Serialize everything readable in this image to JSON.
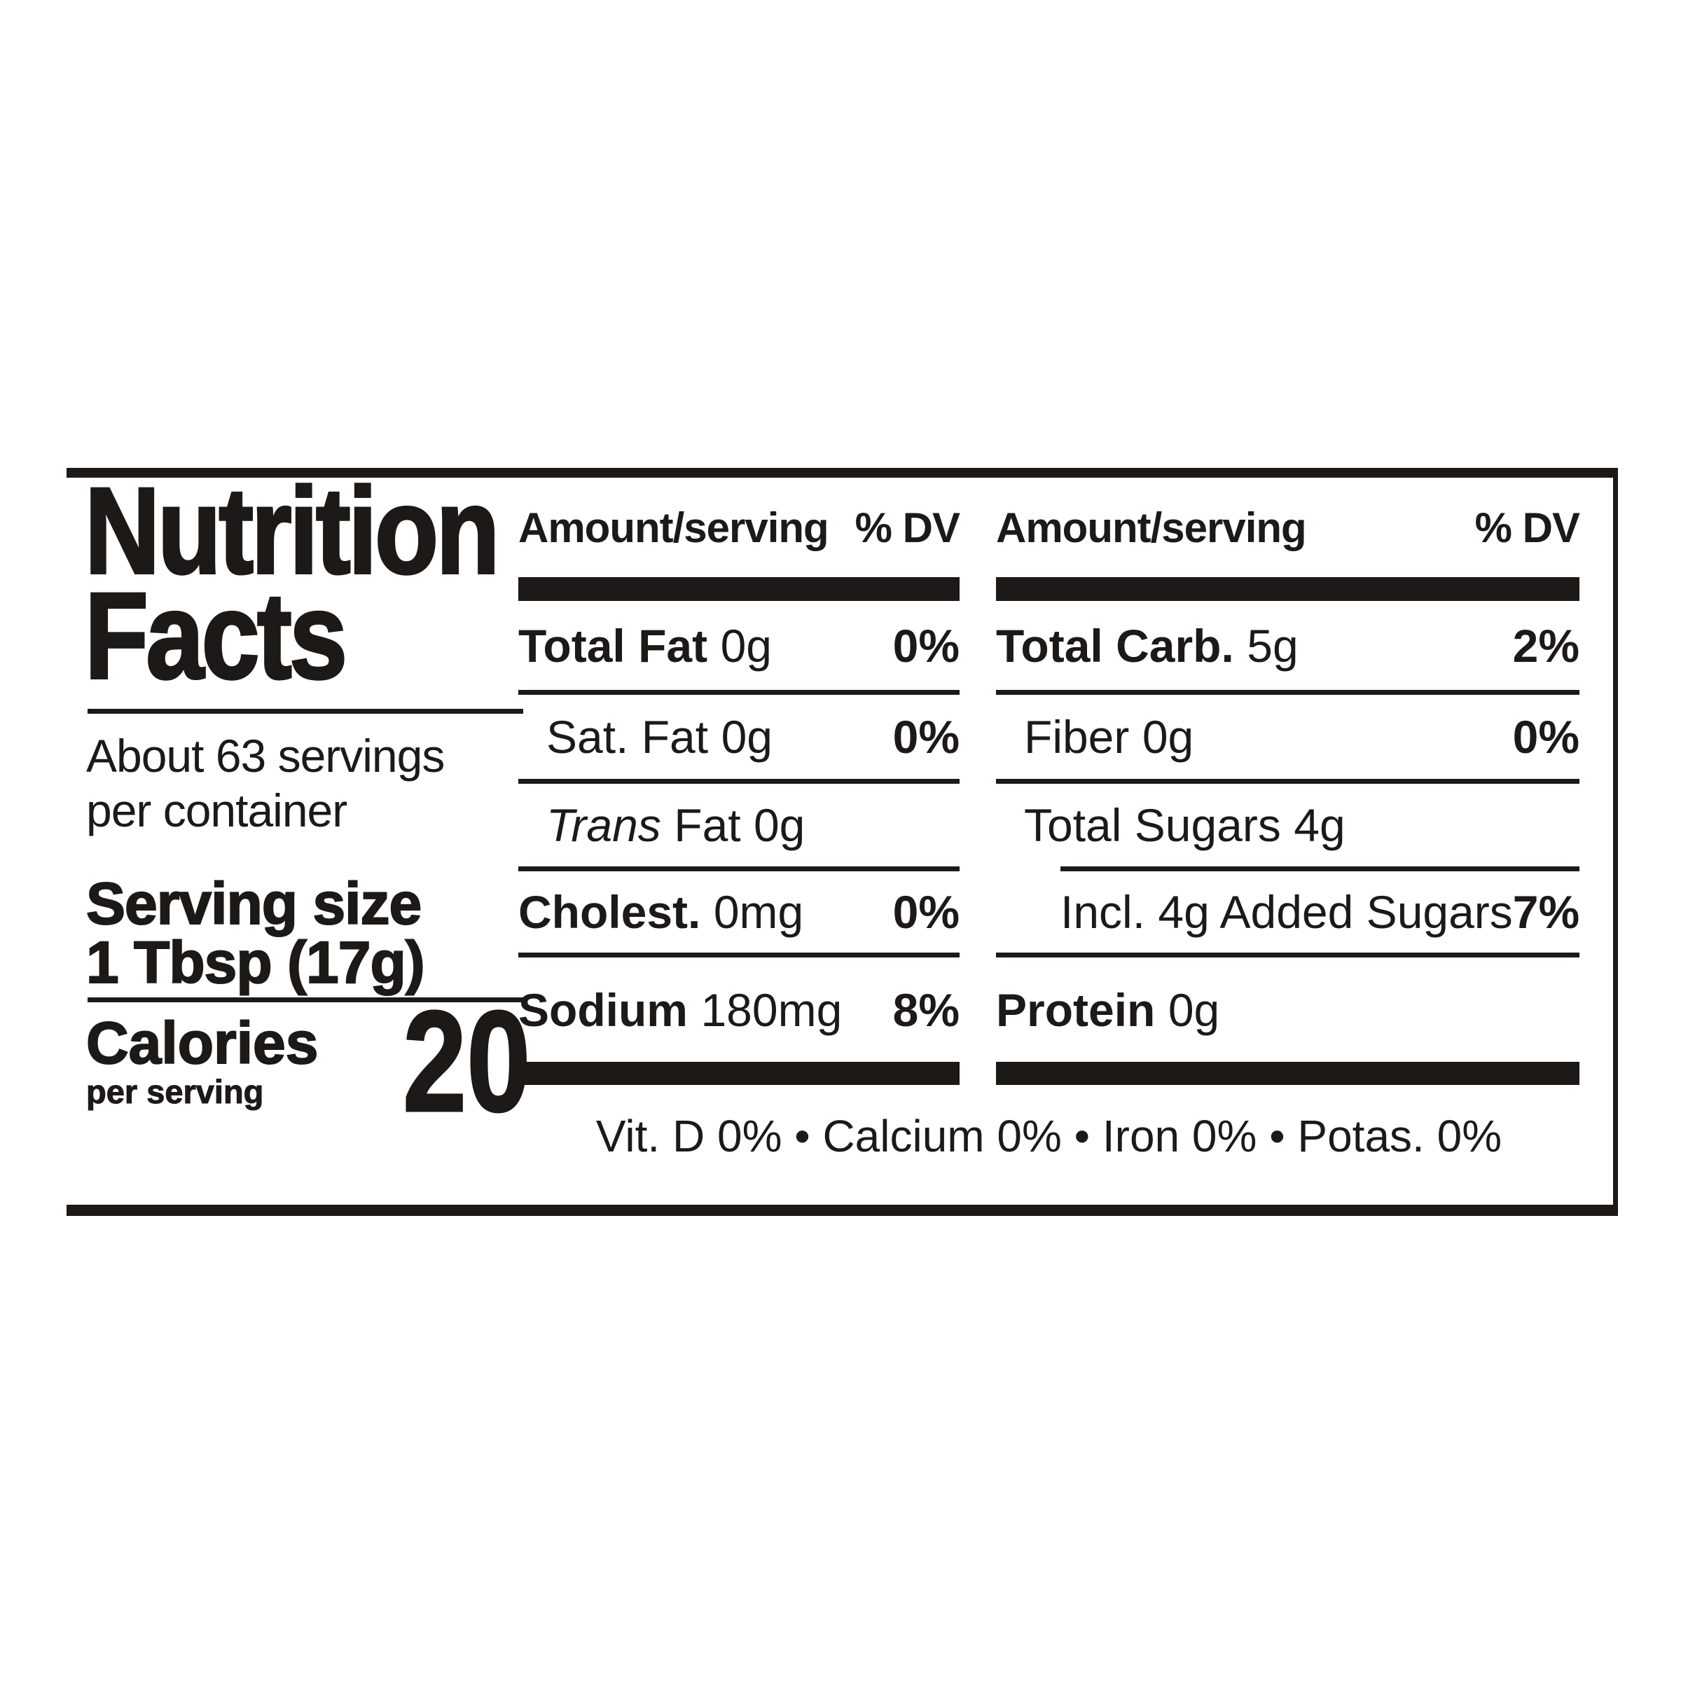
{
  "page": {
    "background": "#ffffff",
    "ink_color": "#1c1917"
  },
  "label": {
    "title": {
      "line1": "Nutrition",
      "line2": "Facts"
    },
    "servings_per_container": {
      "line1": "About 63 servings",
      "line2": "per container"
    },
    "serving_size": {
      "label": "Serving size",
      "value": "1 Tbsp (17g)"
    },
    "calories": {
      "label": "Calories",
      "sublabel": "per serving",
      "value": "20"
    },
    "columns": [
      {
        "header": {
          "amount": "Amount/serving",
          "dv": "% DV"
        },
        "rows": [
          {
            "name": "Total Fat",
            "amount": "0g",
            "dv": "0%"
          },
          {
            "name": "Sat. Fat",
            "amount": "0g",
            "dv": "0%"
          },
          {
            "name": "Trans",
            "amount": "Fat 0g",
            "dv": ""
          },
          {
            "name": "Cholest.",
            "amount": "0mg",
            "dv": "0%"
          },
          {
            "name": "Sodium",
            "amount": "180mg",
            "dv": "8%"
          }
        ]
      },
      {
        "header": {
          "amount": "Amount/serving",
          "dv": "% DV"
        },
        "rows": [
          {
            "name": "Total Carb.",
            "amount": "5g",
            "dv": "2%"
          },
          {
            "name": "Fiber",
            "amount": "0g",
            "dv": "0%"
          },
          {
            "name": "Total Sugars",
            "amount": "4g",
            "dv": ""
          },
          {
            "name": "Incl. 4g Added Sugars",
            "amount": "",
            "dv": "7%"
          },
          {
            "name": "Protein",
            "amount": "0g",
            "dv": ""
          }
        ]
      }
    ],
    "micronutrients": {
      "text": "Vit. D 0% • Calcium 0% • Iron 0% • Potas. 0%",
      "items": [
        {
          "name": "Vit. D",
          "dv": "0%"
        },
        {
          "name": "Calcium",
          "dv": "0%"
        },
        {
          "name": "Iron",
          "dv": "0%"
        },
        {
          "name": "Potas.",
          "dv": "0%"
        }
      ]
    }
  }
}
